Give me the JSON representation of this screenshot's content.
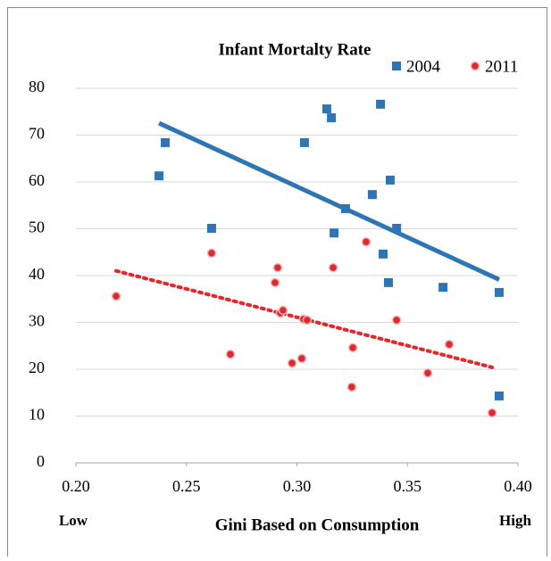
{
  "chart_data": {
    "type": "scatter",
    "title": "Infant Mortalty Rate",
    "xlabel": "Gini Based on Consumption",
    "annotations": [
      "Low",
      "High"
    ],
    "xlim": [
      0.2,
      0.4
    ],
    "xticks": [
      {
        "value": 0.2,
        "label": "0.20"
      },
      {
        "value": 0.25,
        "label": "0.25"
      },
      {
        "value": 0.3,
        "label": "0.30"
      },
      {
        "value": 0.35,
        "label": "0.35"
      },
      {
        "value": 0.4,
        "label": "0.40"
      }
    ],
    "ylim": [
      0,
      80
    ],
    "yticks": [
      0,
      10,
      20,
      30,
      40,
      50,
      60,
      70,
      80
    ],
    "grid": true,
    "legend": "top-right",
    "series": [
      {
        "name": "2004",
        "color": "#2e75b6",
        "marker": "square",
        "trendline": "solid",
        "x": [
          0.2376,
          0.2404,
          0.2614,
          0.3034,
          0.3135,
          0.3156,
          0.3168,
          0.322,
          0.3341,
          0.3378,
          0.339,
          0.3414,
          0.3422,
          0.3451,
          0.3661,
          0.3915,
          0.3915
        ],
        "values": [
          61.3,
          68.4,
          50.1,
          68.4,
          75.6,
          73.7,
          49.1,
          54.3,
          57.3,
          76.6,
          44.6,
          38.5,
          60.4,
          50.1,
          37.5,
          36.4,
          14.3
        ]
      },
      {
        "name": "2011",
        "color": "#e0282e",
        "marker": "circle",
        "trendline": "dotted",
        "x": [
          0.2182,
          0.2614,
          0.2699,
          0.2901,
          0.2913,
          0.2925,
          0.2937,
          0.2978,
          0.3022,
          0.303,
          0.3046,
          0.3164,
          0.3248,
          0.3253,
          0.3313,
          0.3451,
          0.3592,
          0.3689,
          0.3883
        ],
        "values": [
          35.6,
          44.8,
          23.2,
          38.5,
          41.7,
          32.0,
          32.6,
          21.3,
          22.3,
          30.7,
          30.5,
          41.7,
          16.2,
          24.6,
          47.2,
          30.5,
          19.2,
          25.3,
          10.7
        ]
      }
    ]
  }
}
